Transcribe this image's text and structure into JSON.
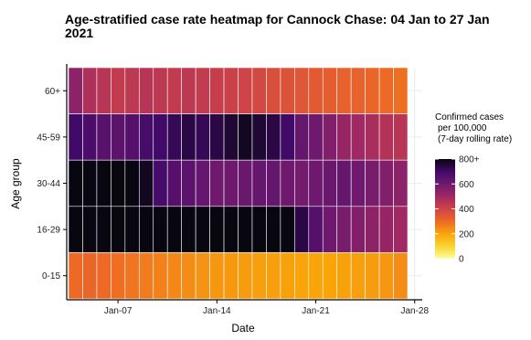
{
  "chart_data": {
    "type": "heatmap",
    "title": "Age-stratified case rate heatmap for Cannock Chase: 04 Jan to 27 Jan 2021",
    "xlabel": "Date",
    "ylabel": "Age group",
    "x_start": "2021-01-04",
    "x_end": "2021-01-27",
    "x_ticks": [
      "Jan-07",
      "Jan-14",
      "Jan-21",
      "Jan-28"
    ],
    "y_categories": [
      "60+",
      "45-59",
      "30-44",
      "16-29",
      "0-15"
    ],
    "legend": {
      "title": [
        "Confirmed cases",
        "per 100,000",
        "(7-day rolling rate)"
      ],
      "ticks": [
        {
          "value": 800,
          "label": "800+"
        },
        {
          "value": 600,
          "label": "600"
        },
        {
          "value": 400,
          "label": "400"
        },
        {
          "value": 200,
          "label": "200"
        },
        {
          "value": 0,
          "label": "0"
        }
      ],
      "max": 800,
      "position": "right"
    },
    "series": [
      {
        "age_group": "60+",
        "values": [
          540,
          470,
          450,
          430,
          440,
          450,
          440,
          430,
          440,
          430,
          420,
          410,
          400,
          390,
          370,
          360,
          350,
          340,
          330,
          320,
          320,
          310,
          300,
          290
        ]
      },
      {
        "age_group": "45-59",
        "values": [
          700,
          680,
          650,
          640,
          660,
          690,
          700,
          720,
          740,
          720,
          740,
          760,
          780,
          760,
          740,
          700,
          620,
          600,
          560,
          520,
          500,
          480,
          460,
          450
        ]
      },
      {
        "age_group": "30-44",
        "values": [
          820,
          820,
          820,
          810,
          800,
          780,
          690,
          660,
          640,
          620,
          600,
          600,
          610,
          620,
          620,
          600,
          590,
          600,
          610,
          620,
          600,
          580,
          560,
          540
        ]
      },
      {
        "age_group": "16-29",
        "values": [
          830,
          840,
          850,
          860,
          870,
          880,
          890,
          900,
          910,
          900,
          880,
          860,
          850,
          840,
          840,
          820,
          740,
          660,
          600,
          580,
          560,
          540,
          520,
          500
        ]
      },
      {
        "age_group": "0-15",
        "values": [
          300,
          310,
          300,
          290,
          280,
          270,
          260,
          250,
          240,
          230,
          225,
          220,
          215,
          210,
          210,
          205,
          200,
          200,
          200,
          205,
          210,
          215,
          225,
          240
        ]
      }
    ],
    "grid": true
  }
}
